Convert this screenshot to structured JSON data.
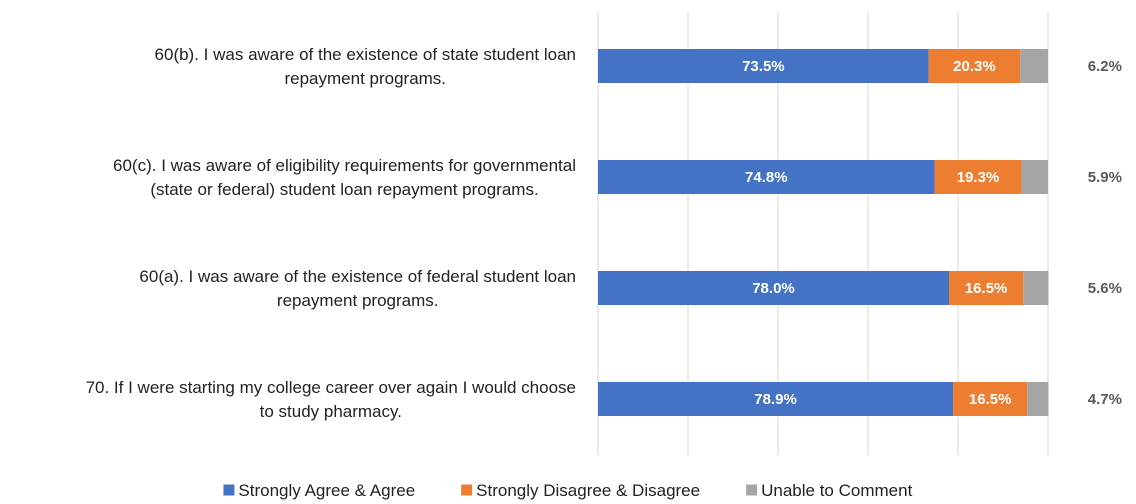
{
  "chart_data": {
    "type": "bar",
    "orientation": "horizontal",
    "stacked": true,
    "title": "",
    "xlabel": "",
    "ylabel": "",
    "xlim": [
      0,
      100
    ],
    "grid": "vertical gridlines",
    "legend_position": "bottom",
    "categories": [
      [
        "60(b). I was aware of the existence of state student loan",
        "repayment programs."
      ],
      [
        "60(c). I was aware of eligibility requirements for governmental",
        "(state or federal) student loan repayment programs."
      ],
      [
        "60(a). I was aware of the existence of federal student loan",
        "repayment programs."
      ],
      [
        "70. If I were starting my college career over again I would choose",
        "to study pharmacy."
      ]
    ],
    "series": [
      {
        "name": "Strongly Agree & Agree",
        "color": "#4472C4",
        "values": [
          73.5,
          74.8,
          78.0,
          78.9
        ],
        "labels": [
          "73.5%",
          "74.8%",
          "78.0%",
          "78.9%"
        ]
      },
      {
        "name": "Strongly Disagree & Disagree",
        "color": "#ED7D31",
        "values": [
          20.3,
          19.3,
          16.5,
          16.5
        ],
        "labels": [
          "20.3%",
          "19.3%",
          "16.5%",
          "16.5%"
        ]
      },
      {
        "name": "Unable to Comment",
        "color": "#A5A5A5",
        "values": [
          6.2,
          5.9,
          5.6,
          4.7
        ],
        "labels": [
          "6.2%",
          "5.9%",
          "5.6%",
          "4.7%"
        ]
      }
    ]
  }
}
